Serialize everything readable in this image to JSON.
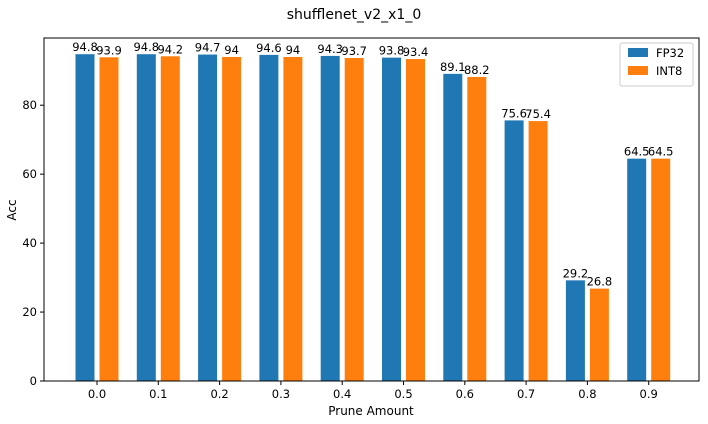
{
  "chart_data": {
    "type": "bar",
    "title": "shufflenet_v2_x1_0",
    "xlabel": "Prune Amount",
    "ylabel": "Acc",
    "categories": [
      "0.0",
      "0.1",
      "0.2",
      "0.3",
      "0.4",
      "0.5",
      "0.6",
      "0.7",
      "0.8",
      "0.9"
    ],
    "series": [
      {
        "name": "FP32",
        "color": "#1f77b4",
        "values": [
          94.8,
          94.8,
          94.7,
          94.6,
          94.3,
          93.8,
          89.1,
          75.6,
          29.2,
          64.5
        ],
        "labels": [
          "94.8",
          "94.8",
          "94.7",
          "94.6",
          "94.3",
          "93.8",
          "89.1",
          "75.6",
          "29.2",
          "64.5"
        ]
      },
      {
        "name": "INT8",
        "color": "#ff7f0e",
        "values": [
          93.9,
          94.2,
          94,
          94,
          93.7,
          93.4,
          88.2,
          75.4,
          26.8,
          64.5
        ],
        "labels": [
          "93.9",
          "94.2",
          "94",
          "94",
          "93.7",
          "93.4",
          "88.2",
          "75.4",
          "26.8",
          "64.5"
        ]
      }
    ],
    "yticks": [
      0,
      20,
      40,
      60,
      80
    ],
    "ylim": [
      0,
      99.5
    ],
    "legend_position": "top-right",
    "grid": false
  }
}
